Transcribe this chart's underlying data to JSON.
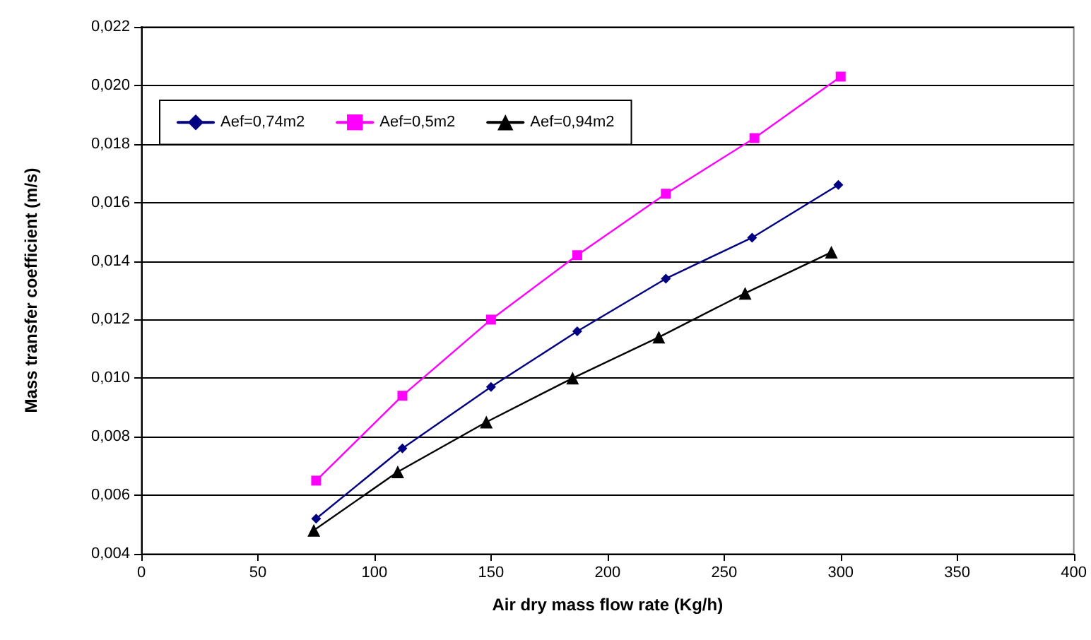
{
  "chart_data": {
    "type": "line",
    "xlabel": "Air dry mass flow rate (Kg/h)",
    "ylabel": "Mass transfer coefficient (m/s)",
    "xlim": [
      0,
      400
    ],
    "xticks": [
      0,
      50,
      100,
      150,
      200,
      250,
      300,
      350,
      400
    ],
    "ylim": [
      0.004,
      0.022
    ],
    "yticks": [
      {
        "value": 0.004,
        "label": "0,004"
      },
      {
        "value": 0.006,
        "label": "0,006"
      },
      {
        "value": 0.008,
        "label": "0,008"
      },
      {
        "value": 0.01,
        "label": "0,010"
      },
      {
        "value": 0.012,
        "label": "0,012"
      },
      {
        "value": 0.014,
        "label": "0,014"
      },
      {
        "value": 0.016,
        "label": "0,016"
      },
      {
        "value": 0.018,
        "label": "0,018"
      },
      {
        "value": 0.02,
        "label": "0,020"
      },
      {
        "value": 0.022,
        "label": "0,022"
      }
    ],
    "grid": "y",
    "legend": "top left",
    "line_style": "solid",
    "series": [
      {
        "name": "Aef=0,74m2",
        "color": "#000080",
        "marker": "diamond",
        "x": [
          75,
          112,
          150,
          187,
          225,
          262,
          299
        ],
        "values": [
          0.0052,
          0.0076,
          0.0097,
          0.0116,
          0.0134,
          0.0148,
          0.0166
        ]
      },
      {
        "name": "Aef=0,5m2",
        "color": "#ff00ff",
        "marker": "square",
        "x": [
          75,
          112,
          150,
          187,
          225,
          263,
          300
        ],
        "values": [
          0.0065,
          0.0094,
          0.012,
          0.0142,
          0.0163,
          0.0182,
          0.0203
        ]
      },
      {
        "name": "Aef=0,94m2",
        "color": "#000000",
        "marker": "triangle",
        "x": [
          74,
          110,
          148,
          185,
          222,
          259,
          296
        ],
        "values": [
          0.0048,
          0.0068,
          0.0085,
          0.01,
          0.0114,
          0.0129,
          0.0143
        ]
      }
    ]
  }
}
